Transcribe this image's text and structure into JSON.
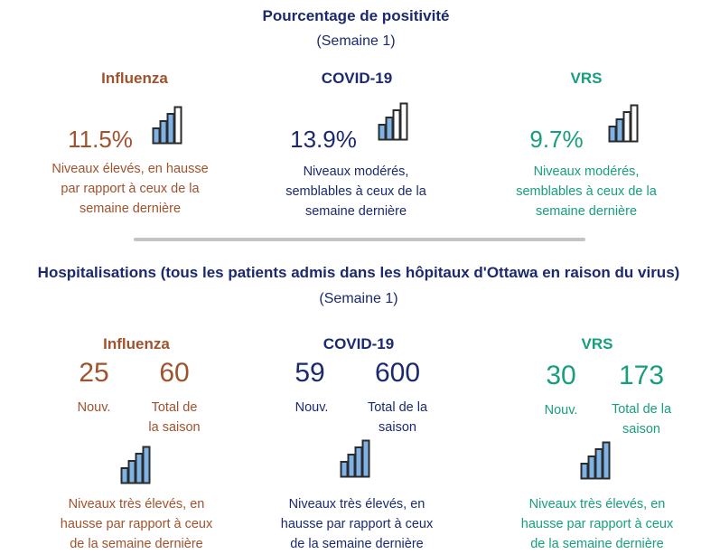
{
  "positivity": {
    "title": "Pourcentage de positivité",
    "week": "(Semaine 1)",
    "influenza": {
      "name": "Influenza",
      "value": "11.5%",
      "desc": [
        "Niveaux élevés,  en hausse",
        "par rapport à ceux de la",
        "semaine dernière"
      ],
      "color": "#a0522d",
      "icon": "bar-chart-icon"
    },
    "covid": {
      "name": "COVID-19",
      "value": "13.9%",
      "desc": [
        "Niveaux modérés,",
        "semblables à ceux de la",
        "semaine dernière"
      ],
      "color": "#1b2a6e",
      "icon": "bar-chart-icon"
    },
    "rsv": {
      "name": "VRS",
      "value": "9.7%",
      "desc": [
        "Niveaux modérés,",
        "semblables à ceux de la",
        "semaine dernière"
      ],
      "color": "#179e7e",
      "icon": "bar-chart-icon"
    }
  },
  "hospital": {
    "title": "Hospitalisations (tous les patients admis dans les hôpitaux d'Ottawa en raison du virus)",
    "week": "(Semaine 1)",
    "influenza": {
      "name": "Influenza",
      "new": "25",
      "new_label": "Nouv.",
      "total": "60",
      "total_label": [
        "Total de",
        "la saison"
      ],
      "desc": [
        "Niveaux très élevés, en",
        "hausse par rapport à ceux",
        "de la semaine dernière"
      ]
    },
    "covid": {
      "name": "COVID-19",
      "new": "59",
      "new_label": "Nouv.",
      "total": "600",
      "total_label": [
        "Total de la",
        "saison"
      ],
      "desc": [
        "Niveaux très élevés, en",
        "hausse par rapport à ceux",
        "de la semaine dernière"
      ]
    },
    "rsv": {
      "name": "VRS",
      "new": "30",
      "new_label": "Nouv.",
      "total": "173",
      "total_label": [
        "Total de la",
        "saison"
      ],
      "desc": [
        "Niveaux très élevés, en",
        "hausse par rapport à ceux",
        "de la semaine dernière"
      ]
    }
  },
  "colors": {
    "navy": "#1b2a6e",
    "influenza": "#a0522d",
    "rsv": "#179e7e",
    "bar_fill": "#7fb2e5",
    "bar_stroke": "#2b2b2b",
    "divider": "#c4c4c4"
  }
}
